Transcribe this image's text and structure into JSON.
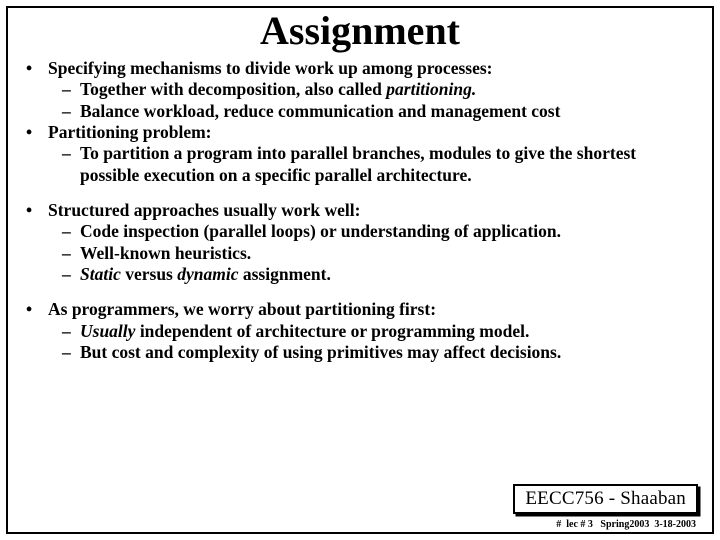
{
  "title": "Assignment",
  "blocks": [
    {
      "lead": "Specifying mechanisms to divide work up among  processes:",
      "subs": [
        "Together with decomposition, also called <i>partitioning.</i>",
        "Balance workload, reduce communication and management cost"
      ]
    },
    {
      "lead": "Partitioning problem:",
      "subs": [
        "To partition a program into parallel branches, modules to give the shortest possible execution on a specific parallel architecture."
      ]
    },
    {
      "lead": "Structured approaches usually work well:",
      "subs": [
        "Code inspection (parallel loops) or understanding of application.",
        "Well-known heuristics.",
        "<i>Static</i> versus <i>dynamic</i> assignment."
      ]
    },
    {
      "lead": "As programmers, we worry about partitioning first:",
      "subs": [
        "<i>Usually</i> independent of architecture or programming model.",
        "But cost and complexity of using primitives may affect decisions."
      ]
    }
  ],
  "gap_after": [
    false,
    true,
    true,
    false
  ],
  "footer_main": "EECC756 - Shaaban",
  "footer_sub": "#  lec # 3   Spring2003  3-18-2003",
  "colors": {
    "fg": "#000000",
    "bg": "#ffffff"
  }
}
